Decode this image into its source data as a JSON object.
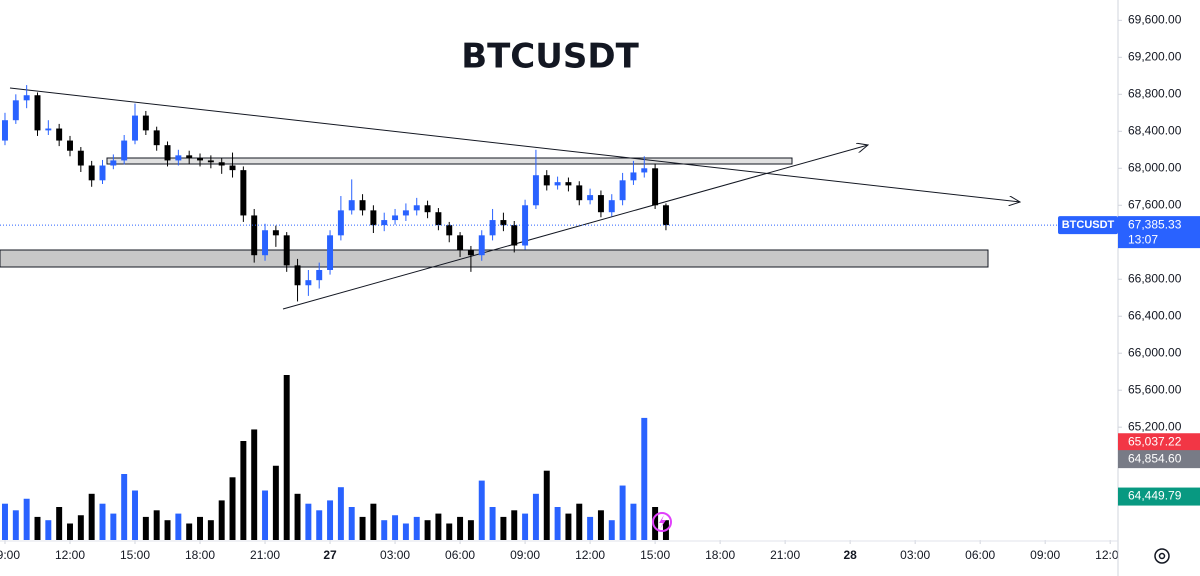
{
  "chart_data": {
    "type": "candlestick",
    "title": "BTCUSDT",
    "x": [
      9,
      9.5,
      10,
      10.5,
      11,
      11.5,
      12,
      12.5,
      13,
      13.5,
      14,
      14.5,
      15,
      15.5,
      16,
      16.5,
      17,
      17.5,
      18,
      18.5,
      19,
      19.5,
      20,
      20.5,
      21,
      21.5,
      22,
      22.5,
      23,
      23.5,
      24,
      24.5,
      25,
      25.5,
      26,
      26.5,
      27,
      27.5,
      28,
      28.5,
      29,
      29.5,
      30,
      30.5,
      31,
      31.5,
      32,
      32.5,
      33,
      33.5,
      34,
      34.5,
      35,
      35.5,
      36,
      36.5,
      37,
      37.5,
      38,
      38.5,
      39,
      39.5
    ],
    "open": [
      68300,
      68520,
      68735,
      68790,
      68410,
      68430,
      68300,
      68190,
      68030,
      67870,
      68030,
      68085,
      68300,
      68570,
      68410,
      68250,
      68085,
      68140,
      68110,
      68085,
      68065,
      68030,
      67980,
      67490,
      67060,
      67330,
      67275,
      66950,
      66735,
      66790,
      66900,
      67275,
      67545,
      67655,
      67545,
      67385,
      67440,
      67490,
      67545,
      67600,
      67525,
      67385,
      67275,
      67115,
      67060,
      67275,
      67440,
      67385,
      67165,
      67600,
      67925,
      67815,
      67850,
      67815,
      67655,
      67710,
      67525,
      67655,
      67870,
      67955,
      68000,
      67600
    ],
    "high": [
      68600,
      68800,
      68900,
      68820,
      68520,
      68480,
      68350,
      68230,
      68080,
      68090,
      68150,
      68360,
      68700,
      68620,
      68450,
      68290,
      68200,
      68190,
      68160,
      68140,
      68110,
      68170,
      68020,
      67560,
      67400,
      67380,
      67310,
      67020,
      66900,
      66980,
      67330,
      67700,
      67880,
      67720,
      67600,
      67520,
      67560,
      67620,
      67680,
      67650,
      67570,
      67420,
      67310,
      67160,
      67330,
      67560,
      67520,
      67430,
      67660,
      68200,
      67980,
      67910,
      67900,
      67860,
      67780,
      67760,
      67720,
      67950,
      68080,
      68130,
      68050,
      67620
    ],
    "low": [
      68250,
      68480,
      68650,
      68350,
      68360,
      68240,
      68130,
      67960,
      67800,
      67830,
      67990,
      68040,
      68260,
      68360,
      68190,
      68020,
      68030,
      68050,
      68020,
      68000,
      67940,
      67900,
      67420,
      66980,
      67000,
      67150,
      66880,
      66560,
      66620,
      66700,
      66850,
      67220,
      67500,
      67490,
      67300,
      67320,
      67390,
      67430,
      67490,
      67460,
      67330,
      67200,
      67040,
      66880,
      67000,
      67220,
      67320,
      67090,
      67120,
      67560,
      67760,
      67770,
      67750,
      67600,
      67610,
      67470,
      67480,
      67600,
      67820,
      67900,
      67560,
      67330
    ],
    "close": [
      68520,
      68735,
      68790,
      68410,
      68430,
      68300,
      68190,
      68030,
      67870,
      68030,
      68085,
      68300,
      68570,
      68410,
      68250,
      68085,
      68140,
      68110,
      68085,
      68065,
      68030,
      67980,
      67490,
      67060,
      67330,
      67275,
      66950,
      66735,
      66790,
      66900,
      67275,
      67545,
      67655,
      67545,
      67385,
      67440,
      67490,
      67545,
      67600,
      67525,
      67385,
      67275,
      67115,
      67060,
      67275,
      67440,
      67385,
      67165,
      67600,
      67925,
      67815,
      67850,
      67815,
      67655,
      67710,
      67525,
      67655,
      67870,
      67955,
      68000,
      67600,
      67385.33
    ],
    "volume": [
      22,
      18,
      25,
      14,
      12,
      20,
      10,
      15,
      28,
      22,
      16,
      40,
      30,
      14,
      18,
      12,
      16,
      10,
      14,
      12,
      24,
      38,
      60,
      67,
      30,
      45,
      100,
      28,
      22,
      18,
      24,
      32,
      20,
      14,
      22,
      12,
      15,
      10,
      14,
      12,
      16,
      10,
      14,
      12,
      36,
      20,
      14,
      18,
      16,
      28,
      42,
      20,
      16,
      22,
      14,
      18,
      12,
      33,
      22,
      74,
      20,
      12
    ],
    "up_color": "#2962ff",
    "down_color": "#000000",
    "xlim": [
      8.77,
      60.36
    ],
    "xticks": [
      {
        "value": 9,
        "label": "09:00"
      },
      {
        "value": 12,
        "label": "12:00"
      },
      {
        "value": 15,
        "label": "15:00"
      },
      {
        "value": 18,
        "label": "18:00"
      },
      {
        "value": 21,
        "label": "21:00"
      },
      {
        "value": 24,
        "label": "27"
      },
      {
        "value": 27,
        "label": "03:00"
      },
      {
        "value": 30,
        "label": "06:00"
      },
      {
        "value": 33,
        "label": "09:00"
      },
      {
        "value": 36,
        "label": "12:00"
      },
      {
        "value": 39,
        "label": "15:00"
      },
      {
        "value": 42,
        "label": "18:00"
      },
      {
        "value": 45,
        "label": "21:00"
      },
      {
        "value": 48,
        "label": "28"
      },
      {
        "value": 51,
        "label": "03:00"
      },
      {
        "value": 54,
        "label": "06:00"
      },
      {
        "value": 57,
        "label": "09:00"
      },
      {
        "value": 60,
        "label": "12:00"
      }
    ],
    "ylim": [
      63980,
      69820
    ],
    "yticks": [
      {
        "value": 69600,
        "label": "69,600.00"
      },
      {
        "value": 69200,
        "label": "69,200.00"
      },
      {
        "value": 68800,
        "label": "68,800.00"
      },
      {
        "value": 68400,
        "label": "68,400.00"
      },
      {
        "value": 68000,
        "label": "68,000.00"
      },
      {
        "value": 67600,
        "label": "67,600.00"
      },
      {
        "value": 67200,
        "label": "67,200.00"
      },
      {
        "value": 66800,
        "label": "66,800.00"
      },
      {
        "value": 66400,
        "label": "66,400.00"
      },
      {
        "value": 66000,
        "label": "66,000.00"
      },
      {
        "value": 65600,
        "label": "65,600.00"
      },
      {
        "value": 65200,
        "label": "65,200.00"
      }
    ],
    "last_price": {
      "name": "BTCUSDT",
      "value": 67385.33,
      "label": "67,385.33",
      "countdown": "13:07",
      "color": "#2962ff"
    },
    "price_labels": [
      {
        "value": 65037.22,
        "label": "65,037.22",
        "color": "#f23645"
      },
      {
        "value": 64854.6,
        "label": "64,854.60",
        "color": "#787b86"
      },
      {
        "value": 64449.79,
        "label": "64,449.79",
        "color": "#089981"
      }
    ]
  }
}
